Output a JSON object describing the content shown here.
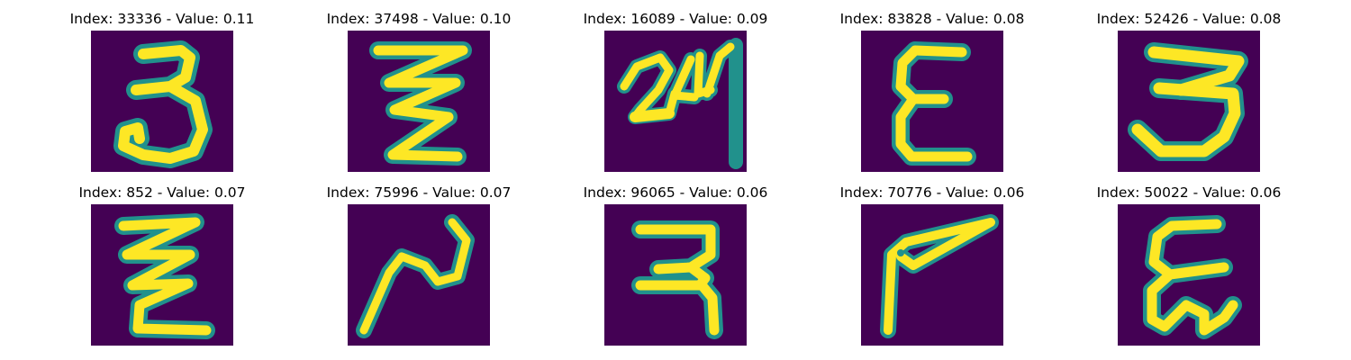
{
  "figure": {
    "colors": {
      "background": "#440154",
      "mid": "#21918c",
      "bright": "#fde725"
    },
    "panels": [
      {
        "title": "Index: 33336 - Value: 0.11",
        "glyph": "3"
      },
      {
        "title": "Index: 37498 - Value: 0.10",
        "glyph": "zigzag"
      },
      {
        "title": "Index: 16089 - Value: 0.09",
        "glyph": "24"
      },
      {
        "title": "Index: 83828 - Value: 0.08",
        "glyph": "epsilon"
      },
      {
        "title": "Index: 52426 - Value: 0.08",
        "glyph": "3"
      },
      {
        "title": "Index: 852 - Value: 0.07",
        "glyph": "zigzag"
      },
      {
        "title": "Index: 75996 - Value: 0.07",
        "glyph": "squiggle"
      },
      {
        "title": "Index: 96065 - Value: 0.06",
        "glyph": "ra"
      },
      {
        "title": "Index: 70776 - Value: 0.06",
        "glyph": "hook"
      },
      {
        "title": "Index: 50022 - Value: 0.06",
        "glyph": "epsilon"
      }
    ]
  }
}
